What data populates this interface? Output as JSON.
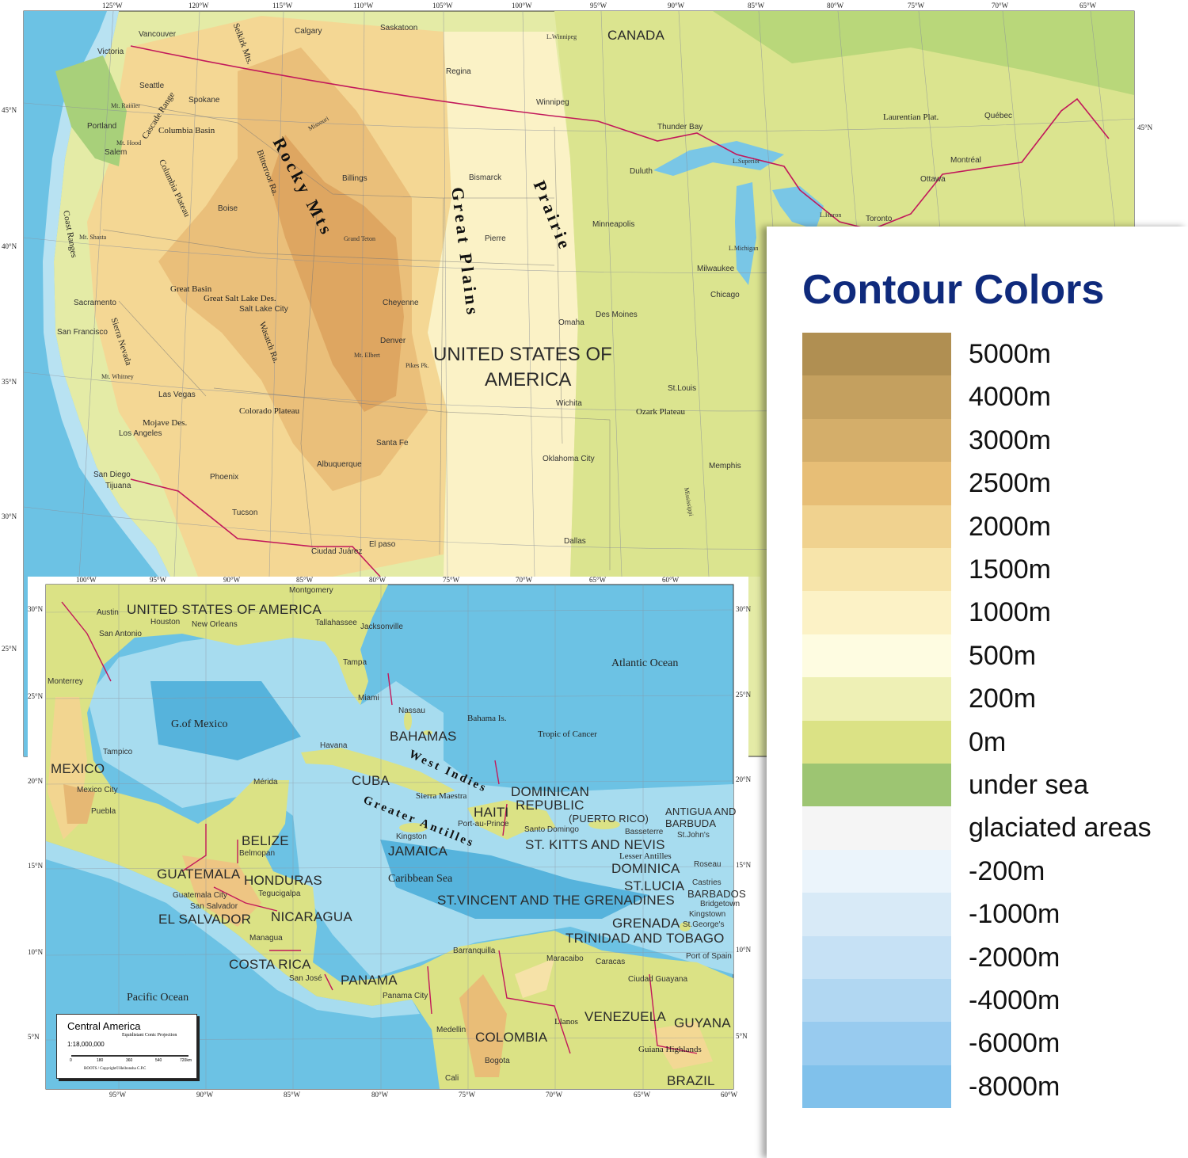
{
  "top_map": {
    "longitudes": [
      "125°W",
      "120°W",
      "115°W",
      "110°W",
      "105°W",
      "100°W",
      "95°W",
      "90°W",
      "85°W",
      "80°W",
      "75°W",
      "70°W",
      "65°W"
    ],
    "latitudes_left": [
      "45°N",
      "40°N",
      "35°N",
      "30°N",
      "25°N"
    ],
    "latitudes_right": [
      "45°N"
    ],
    "labels": [
      {
        "text": "CANADA",
        "kind": "country"
      },
      {
        "text": "UNITED STATES OF",
        "kind": "country-big"
      },
      {
        "text": "AMERICA",
        "kind": "country-big"
      },
      {
        "text": "Vancouver",
        "kind": "city"
      },
      {
        "text": "Victoria",
        "kind": "city"
      },
      {
        "text": "Seattle",
        "kind": "city"
      },
      {
        "text": "Portland",
        "kind": "city"
      },
      {
        "text": "Salem",
        "kind": "city"
      },
      {
        "text": "Spokane",
        "kind": "city"
      },
      {
        "text": "Calgary",
        "kind": "city"
      },
      {
        "text": "Saskatoon",
        "kind": "city"
      },
      {
        "text": "Regina",
        "kind": "city"
      },
      {
        "text": "Winnipeg",
        "kind": "city"
      },
      {
        "text": "Boise",
        "kind": "city"
      },
      {
        "text": "Billings",
        "kind": "city"
      },
      {
        "text": "Bismarck",
        "kind": "city"
      },
      {
        "text": "Pierre",
        "kind": "city"
      },
      {
        "text": "Minneapolis",
        "kind": "city"
      },
      {
        "text": "Duluth",
        "kind": "city"
      },
      {
        "text": "Thunder Bay",
        "kind": "city"
      },
      {
        "text": "Chicago",
        "kind": "city"
      },
      {
        "text": "Milwaukee",
        "kind": "city"
      },
      {
        "text": "Des Moines",
        "kind": "city"
      },
      {
        "text": "Omaha",
        "kind": "city"
      },
      {
        "text": "Denver",
        "kind": "city"
      },
      {
        "text": "Cheyenne",
        "kind": "city"
      },
      {
        "text": "Salt Lake City",
        "kind": "city"
      },
      {
        "text": "Sacramento",
        "kind": "city"
      },
      {
        "text": "San Francisco",
        "kind": "city"
      },
      {
        "text": "Las Vegas",
        "kind": "city"
      },
      {
        "text": "Los Angeles",
        "kind": "city"
      },
      {
        "text": "San Diego",
        "kind": "city"
      },
      {
        "text": "Tijuana",
        "kind": "city"
      },
      {
        "text": "Phoenix",
        "kind": "city"
      },
      {
        "text": "Tucson",
        "kind": "city"
      },
      {
        "text": "Albuquerque",
        "kind": "city"
      },
      {
        "text": "Santa Fe",
        "kind": "city"
      },
      {
        "text": "Wichita",
        "kind": "city"
      },
      {
        "text": "Oklahoma City",
        "kind": "city"
      },
      {
        "text": "Dallas",
        "kind": "city"
      },
      {
        "text": "Memphis",
        "kind": "city"
      },
      {
        "text": "St.Louis",
        "kind": "city"
      },
      {
        "text": "Ciudad Juárez",
        "kind": "city"
      },
      {
        "text": "El paso",
        "kind": "city"
      },
      {
        "text": "Ottawa",
        "kind": "city"
      },
      {
        "text": "Montréal",
        "kind": "city"
      },
      {
        "text": "Québec",
        "kind": "city"
      },
      {
        "text": "Toronto",
        "kind": "city"
      },
      {
        "text": "Columbia Basin",
        "kind": "region"
      },
      {
        "text": "Great Basin",
        "kind": "region"
      },
      {
        "text": "Great Salt Lake Des.",
        "kind": "region"
      },
      {
        "text": "Colorado Plateau",
        "kind": "region"
      },
      {
        "text": "Mojave Des.",
        "kind": "region"
      },
      {
        "text": "Ozark Plateau",
        "kind": "region"
      },
      {
        "text": "Laurentian Plat.",
        "kind": "region"
      },
      {
        "text": "Cascade Range",
        "kind": "region"
      },
      {
        "text": "Columbia Plateau",
        "kind": "region"
      },
      {
        "text": "Sierra Nevada",
        "kind": "region"
      },
      {
        "text": "Coast Ranges",
        "kind": "region"
      },
      {
        "text": "Wasatch Ra.",
        "kind": "region"
      },
      {
        "text": "Bitterroot Ra.",
        "kind": "region"
      },
      {
        "text": "Selkirk Mts.",
        "kind": "region"
      },
      {
        "text": "Rocky Mts",
        "kind": "big-serif"
      },
      {
        "text": "Great Plains",
        "kind": "big-serif"
      },
      {
        "text": "Prairie",
        "kind": "big-serif"
      },
      {
        "text": "Mt. Rainier",
        "kind": "mini"
      },
      {
        "text": "Mt. Hood",
        "kind": "mini"
      },
      {
        "text": "Mt. Shasta",
        "kind": "mini"
      },
      {
        "text": "Mt. Whitney",
        "kind": "mini"
      },
      {
        "text": "Grand Teton",
        "kind": "mini"
      },
      {
        "text": "Pikes Pk.",
        "kind": "mini"
      },
      {
        "text": "Mt. Elbert",
        "kind": "mini"
      },
      {
        "text": "L.Superior",
        "kind": "mini"
      },
      {
        "text": "L.Michigan",
        "kind": "mini"
      },
      {
        "text": "L.Huron",
        "kind": "mini"
      },
      {
        "text": "L.Winnipeg",
        "kind": "mini"
      },
      {
        "text": "Mississippi",
        "kind": "mini"
      },
      {
        "text": "Missouri",
        "kind": "mini"
      }
    ]
  },
  "inset_map": {
    "title": "Central America",
    "projection": "Equidistant Conic Projection",
    "scale": "1:18,000,000",
    "scale_ticks": [
      "0",
      "180",
      "360",
      "540",
      "720km"
    ],
    "copyright": "ROOTS / Copyright©Heibonsha C.P.C",
    "longitudes_top": [
      "100°W",
      "95°W",
      "90°W",
      "85°W",
      "80°W",
      "75°W",
      "70°W",
      "65°W",
      "60°W"
    ],
    "longitudes_bottom": [
      "95°W",
      "90°W",
      "85°W",
      "80°W",
      "75°W",
      "70°W",
      "65°W",
      "60°W"
    ],
    "latitudes_left": [
      "30°N",
      "25°N",
      "20°N",
      "15°N",
      "10°N",
      "5°N"
    ],
    "latitudes_right": [
      "30°N",
      "25°N",
      "20°N",
      "15°N",
      "10°N",
      "5°N"
    ],
    "labels": [
      {
        "text": "UNITED STATES OF AMERICA",
        "kind": "country"
      },
      {
        "text": "MEXICO",
        "kind": "country"
      },
      {
        "text": "BAHAMAS",
        "kind": "country"
      },
      {
        "text": "CUBA",
        "kind": "country"
      },
      {
        "text": "HAITI",
        "kind": "country"
      },
      {
        "text": "DOMINICAN",
        "kind": "country"
      },
      {
        "text": "REPUBLIC",
        "kind": "country"
      },
      {
        "text": "(PUERTO RICO)",
        "kind": "country-s"
      },
      {
        "text": "ANTIGUA AND",
        "kind": "country-s"
      },
      {
        "text": "BARBUDA",
        "kind": "country-s"
      },
      {
        "text": "JAMAICA",
        "kind": "country"
      },
      {
        "text": "ST. KITTS AND NEVIS",
        "kind": "country"
      },
      {
        "text": "DOMINICA",
        "kind": "country"
      },
      {
        "text": "ST.LUCIA",
        "kind": "country"
      },
      {
        "text": "BARBADOS",
        "kind": "country-s"
      },
      {
        "text": "ST.VINCENT AND THE GRENADINES",
        "kind": "country"
      },
      {
        "text": "GRENADA",
        "kind": "country"
      },
      {
        "text": "TRINIDAD AND TOBAGO",
        "kind": "country"
      },
      {
        "text": "BELIZE",
        "kind": "country"
      },
      {
        "text": "GUATEMALA",
        "kind": "country"
      },
      {
        "text": "HONDURAS",
        "kind": "country"
      },
      {
        "text": "EL SALVADOR",
        "kind": "country"
      },
      {
        "text": "NICARAGUA",
        "kind": "country"
      },
      {
        "text": "COSTA RICA",
        "kind": "country"
      },
      {
        "text": "PANAMA",
        "kind": "country"
      },
      {
        "text": "COLOMBIA",
        "kind": "country"
      },
      {
        "text": "VENEZUELA",
        "kind": "country"
      },
      {
        "text": "GUYANA",
        "kind": "country"
      },
      {
        "text": "BRAZIL",
        "kind": "country"
      },
      {
        "text": "Atlantic Ocean",
        "kind": "sea"
      },
      {
        "text": "Caribbean Sea",
        "kind": "sea"
      },
      {
        "text": "Pacific Ocean",
        "kind": "sea"
      },
      {
        "text": "G.of Mexico",
        "kind": "sea"
      },
      {
        "text": "Tropic of Cancer",
        "kind": "region"
      },
      {
        "text": "Greater Antilles",
        "kind": "big-serif"
      },
      {
        "text": "West Indies",
        "kind": "big-serif"
      },
      {
        "text": "Lesser Antilles",
        "kind": "region"
      },
      {
        "text": "Havana",
        "kind": "city"
      },
      {
        "text": "Nassau",
        "kind": "city"
      },
      {
        "text": "Miami",
        "kind": "city"
      },
      {
        "text": "Tampa",
        "kind": "city"
      },
      {
        "text": "Houston",
        "kind": "city"
      },
      {
        "text": "New Orleans",
        "kind": "city"
      },
      {
        "text": "Mexico City",
        "kind": "city"
      },
      {
        "text": "Kingston",
        "kind": "city"
      },
      {
        "text": "Port-au-Prince",
        "kind": "city"
      },
      {
        "text": "Santo Domingo",
        "kind": "city"
      },
      {
        "text": "Caracas",
        "kind": "city"
      },
      {
        "text": "Bogota",
        "kind": "city"
      },
      {
        "text": "Panama City",
        "kind": "city"
      },
      {
        "text": "San José",
        "kind": "city"
      },
      {
        "text": "Managua",
        "kind": "city"
      },
      {
        "text": "Tegucigalpa",
        "kind": "city"
      },
      {
        "text": "San Salvador",
        "kind": "city"
      },
      {
        "text": "Guatemala City",
        "kind": "city"
      },
      {
        "text": "Belmopan",
        "kind": "city"
      },
      {
        "text": "Mérida",
        "kind": "city"
      },
      {
        "text": "Tallahassee",
        "kind": "city"
      },
      {
        "text": "Jacksonville",
        "kind": "city"
      },
      {
        "text": "Montgomery",
        "kind": "city"
      },
      {
        "text": "Monterrey",
        "kind": "city"
      },
      {
        "text": "Tampico",
        "kind": "city"
      },
      {
        "text": "Austin",
        "kind": "city"
      },
      {
        "text": "San Antonio",
        "kind": "city"
      },
      {
        "text": "Puebla",
        "kind": "city"
      },
      {
        "text": "Roseau",
        "kind": "city"
      },
      {
        "text": "Castries",
        "kind": "city"
      },
      {
        "text": "Bridgetown",
        "kind": "city"
      },
      {
        "text": "Kingstown",
        "kind": "city"
      },
      {
        "text": "St.George's",
        "kind": "city"
      },
      {
        "text": "Basseterre",
        "kind": "city"
      },
      {
        "text": "St.John's",
        "kind": "city"
      },
      {
        "text": "Port of Spain",
        "kind": "city"
      },
      {
        "text": "Maracaibo",
        "kind": "city"
      },
      {
        "text": "Barranquilla",
        "kind": "city"
      },
      {
        "text": "Medellin",
        "kind": "city"
      },
      {
        "text": "Cali",
        "kind": "city"
      },
      {
        "text": "Llanos",
        "kind": "region"
      },
      {
        "text": "Guiana Highlands",
        "kind": "region"
      },
      {
        "text": "Ciudad Guayana",
        "kind": "city"
      },
      {
        "text": "Sierra Maestra",
        "kind": "region"
      },
      {
        "text": "Bahama Is.",
        "kind": "region"
      }
    ]
  },
  "legend": {
    "title": "Contour Colors",
    "items": [
      {
        "label": "5000m",
        "color": "#b08f52"
      },
      {
        "label": "4000m",
        "color": "#c4a05f"
      },
      {
        "label": "3000m",
        "color": "#d4ae6a"
      },
      {
        "label": "2500m",
        "color": "#e7be76"
      },
      {
        "label": "2000m",
        "color": "#f0d28f"
      },
      {
        "label": "1500m",
        "color": "#f7e4aa"
      },
      {
        "label": "1000m",
        "color": "#fcf2c6"
      },
      {
        "label": "500m",
        "color": "#fefce1"
      },
      {
        "label": "200m",
        "color": "#eef0b5"
      },
      {
        "label": "0m",
        "color": "#dbe285"
      },
      {
        "label": "under sea",
        "color": "#9dc572"
      },
      {
        "label": "glaciated areas",
        "color": "#f5f5f5"
      },
      {
        "label": "-200m",
        "color": "#ebf4fb"
      },
      {
        "label": "-1000m",
        "color": "#d8eaf7"
      },
      {
        "label": "-2000m",
        "color": "#c6e1f5"
      },
      {
        "label": "-4000m",
        "color": "#b1d7f2"
      },
      {
        "label": "-6000m",
        "color": "#98cbef"
      },
      {
        "label": "-8000m",
        "color": "#80c1eb"
      }
    ]
  },
  "colors": {
    "border": "#c2185b",
    "ocean": "#6cc2e4",
    "title": "#0f2a7c"
  }
}
